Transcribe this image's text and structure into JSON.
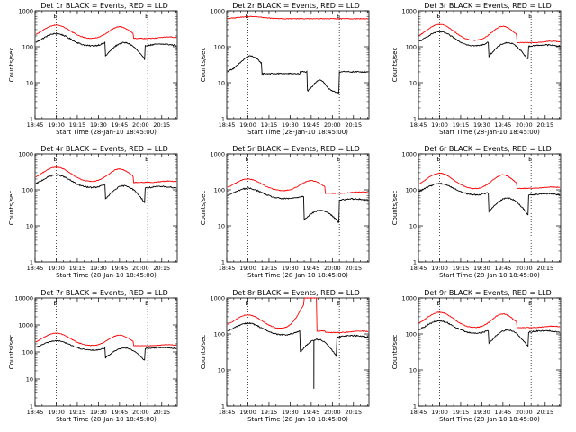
{
  "chart_data": {
    "type": "line",
    "figure_layout": "3x3 grid of log-scale time-series panels",
    "shared": {
      "xlabel": "Start Time (28-Jan-10 18:45:00)",
      "ylabel": "Counts/sec",
      "x_tick_labels": [
        "18:45",
        "19:00",
        "19:15",
        "19:30",
        "19:45",
        "20:00",
        "20:15"
      ],
      "x_ticks_min": [
        0,
        15,
        30,
        45,
        60,
        75,
        90
      ],
      "xlim_min": [
        0,
        101
      ],
      "vertical_dotted_lines_min": [
        15,
        80
      ],
      "marker_labels": [
        "E",
        "E"
      ],
      "series_names": [
        "Events",
        "LLD"
      ],
      "series_colors": [
        "#000000",
        "#ff0000"
      ]
    },
    "panels": [
      {
        "title": "Det 1r BLACK = Events, RED = LLD",
        "ylim": [
          1,
          1000
        ],
        "y_tick_labels": [
          "1",
          "10",
          "100",
          "1000"
        ],
        "preset": "standard",
        "events": {
          "base": 100,
          "peak1": 230,
          "peak2": 190,
          "dip_start": 50,
          "dip_end": 78,
          "dip_level": 55,
          "end_level": 105
        },
        "lld": {
          "base": 160,
          "peak1": 400,
          "peak2": 360,
          "end_level": 170
        }
      },
      {
        "title": "Det 2r BLACK = Events, RED = LLD",
        "ylim": [
          1,
          1000
        ],
        "y_tick_labels": [
          "1",
          "10",
          "100",
          "1000"
        ],
        "preset": "det2",
        "events": {
          "base": 20,
          "peak1": 55,
          "peak2": 15,
          "dip_start": 57,
          "dip_end": 80,
          "dip_level": 5,
          "end_level": 20
        },
        "lld": {
          "base": 600,
          "peak1": 700,
          "peak2": 650,
          "end_level": 600
        }
      },
      {
        "title": "Det 3r BLACK = Events, RED = LLD",
        "ylim": [
          1,
          1000
        ],
        "y_tick_labels": [
          "1",
          "10",
          "100",
          "1000"
        ],
        "preset": "standard",
        "events": {
          "base": 100,
          "peak1": 260,
          "peak2": 200,
          "dip_start": 50,
          "dip_end": 78,
          "dip_level": 55,
          "end_level": 100
        },
        "lld": {
          "base": 140,
          "peak1": 420,
          "peak2": 370,
          "end_level": 130
        }
      },
      {
        "title": "Det 4r BLACK = Events, RED = LLD",
        "ylim": [
          1,
          1000
        ],
        "y_tick_labels": [
          "1",
          "10",
          "100",
          "1000"
        ],
        "preset": "standard",
        "events": {
          "base": 110,
          "peak1": 260,
          "peak2": 210,
          "dip_start": 50,
          "dip_end": 78,
          "dip_level": 55,
          "end_level": 110
        },
        "lld": {
          "base": 160,
          "peak1": 430,
          "peak2": 380,
          "end_level": 160
        }
      },
      {
        "title": "Det 5r BLACK = Events, RED = LLD",
        "ylim": [
          1,
          1000
        ],
        "y_tick_labels": [
          "1",
          "10",
          "100",
          "1000"
        ],
        "preset": "det5",
        "events": {
          "base": 55,
          "peak1": 110,
          "peak2": 70,
          "dip_start": 55,
          "dip_end": 80,
          "dip_level": 15,
          "end_level": 50
        },
        "lld": {
          "base": 90,
          "peak1": 200,
          "peak2": 180,
          "end_level": 80
        }
      },
      {
        "title": "Det 6r BLACK = Events, RED = LLD",
        "ylim": [
          1,
          1000
        ],
        "y_tick_labels": [
          "1",
          "10",
          "100",
          "1000"
        ],
        "preset": "det6",
        "events": {
          "base": 70,
          "peak1": 150,
          "peak2": 110,
          "dip_start": 50,
          "dip_end": 78,
          "dip_level": 25,
          "end_level": 70
        },
        "lld": {
          "base": 100,
          "peak1": 290,
          "peak2": 260,
          "end_level": 110
        }
      },
      {
        "title": "Det 7r BLACK = Events, RED = LLD",
        "ylim": [
          1,
          10000
        ],
        "y_tick_labels": [
          "1",
          "10",
          "100",
          "1000",
          "10000"
        ],
        "preset": "standard",
        "events": {
          "base": 110,
          "peak1": 260,
          "peak2": 200,
          "dip_start": 50,
          "dip_end": 78,
          "dip_level": 60,
          "end_level": 130
        },
        "lld": {
          "base": 160,
          "peak1": 500,
          "peak2": 420,
          "end_level": 170
        }
      },
      {
        "title": "Det 8r BLACK = Events, RED = LLD",
        "ylim": [
          1,
          1000
        ],
        "y_tick_labels": [
          "1",
          "10",
          "100",
          "1000"
        ],
        "preset": "det8",
        "events": {
          "base": 90,
          "peak1": 200,
          "peak2": 150,
          "dip_start": 52,
          "dip_end": 78,
          "dip_level": 30,
          "end_level": 80,
          "spike_min": 3
        },
        "lld": {
          "base": 130,
          "peak1": 340,
          "peak2": 1000,
          "end_level": 110
        }
      },
      {
        "title": "Det 9r BLACK = Events, RED = LLD",
        "ylim": [
          1,
          1000
        ],
        "y_tick_labels": [
          "1",
          "10",
          "100",
          "1000"
        ],
        "preset": "standard",
        "events": {
          "base": 100,
          "peak1": 230,
          "peak2": 170,
          "dip_start": 50,
          "dip_end": 78,
          "dip_level": 55,
          "end_level": 110
        },
        "lld": {
          "base": 140,
          "peak1": 400,
          "peak2": 360,
          "end_level": 150
        }
      }
    ]
  }
}
